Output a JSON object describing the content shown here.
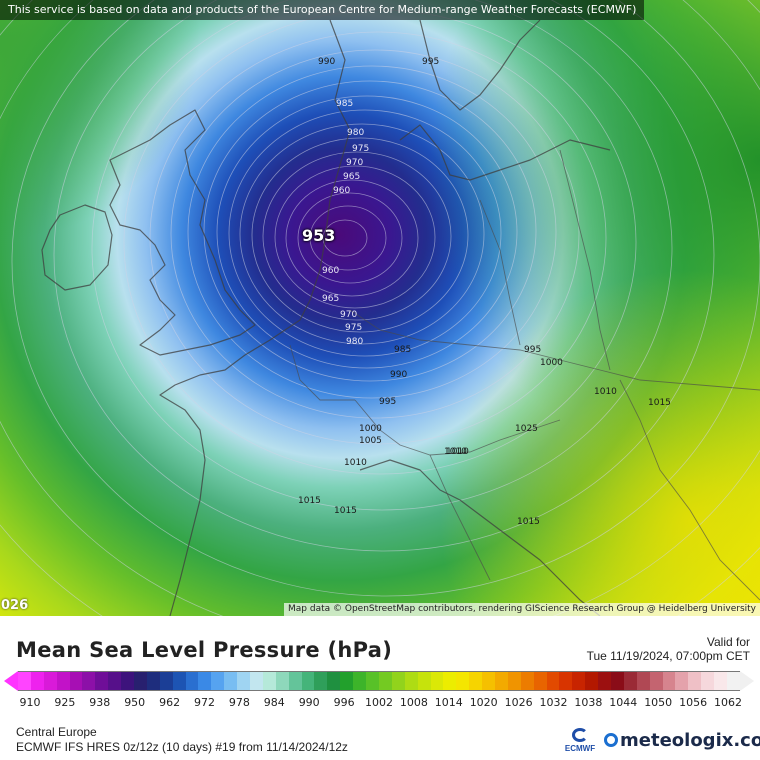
{
  "attribution": {
    "top": "This service is based on data and products of the European Centre for Medium-range Weather Forecasts (ECMWF)",
    "bottom": "Map data © OpenStreetMap contributors, rendering GIScience Research Group @ Heidelberg University"
  },
  "map": {
    "corner_value": "026",
    "low_center": "953",
    "isobar_labels": [
      "990",
      "995",
      "985",
      "980",
      "975",
      "970",
      "965",
      "960",
      "960",
      "965",
      "970",
      "975",
      "980",
      "985",
      "990",
      "995",
      "1000",
      "1005",
      "1010",
      "1015",
      "995",
      "1000",
      "1010",
      "1015",
      "1025",
      "1010",
      "1015",
      "1010",
      "1015"
    ]
  },
  "legend": {
    "title": "Mean Sea Level Pressure (hPa)",
    "valid_label": "Valid for",
    "valid_time": "Tue 11/19/2024, 07:00pm CET",
    "ticks": [
      "910",
      "925",
      "938",
      "950",
      "962",
      "972",
      "978",
      "984",
      "990",
      "996",
      "1002",
      "1008",
      "1014",
      "1020",
      "1026",
      "1032",
      "1038",
      "1044",
      "1050",
      "1056",
      "1062"
    ],
    "region": "Central Europe",
    "model": "ECMWF IFS HRES 0z/12z (10 days) #19 from  11/14/2024/12z",
    "ecmwf_logo": "ECMWF",
    "brand": "meteologix.com"
  }
}
